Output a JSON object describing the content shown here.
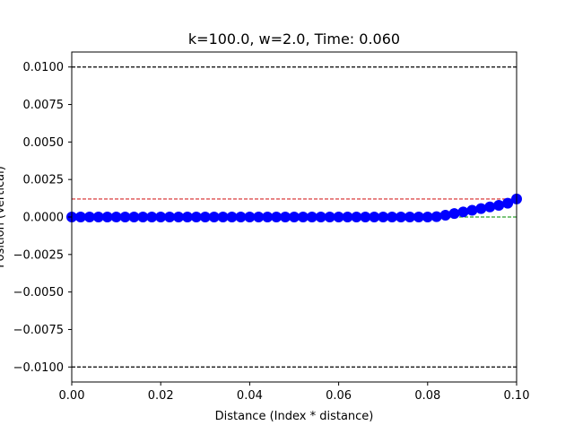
{
  "chart_data": {
    "type": "scatter",
    "title": "k=100.0, w=2.0, Time: 0.060",
    "xlabel": "Distance (Index * distance)",
    "ylabel": "Position (Vertical)",
    "xlim": [
      0.0,
      0.1
    ],
    "ylim": [
      -0.011,
      0.011
    ],
    "x_ticks": [
      0.0,
      0.02,
      0.04,
      0.06,
      0.08,
      0.1
    ],
    "x_tick_labels": [
      "0.00",
      "0.02",
      "0.04",
      "0.06",
      "0.08",
      "0.10"
    ],
    "y_ticks": [
      -0.01,
      -0.0075,
      -0.005,
      -0.0025,
      0.0,
      0.0025,
      0.005,
      0.0075,
      0.01
    ],
    "y_tick_labels": [
      "−0.0100",
      "−0.0075",
      "−0.0050",
      "−0.0025",
      "0.0000",
      "0.0025",
      "0.0050",
      "0.0075",
      "0.0100"
    ],
    "grid": false,
    "reference_lines": [
      {
        "y": 0.01,
        "color": "#000000",
        "style": "dashed"
      },
      {
        "y": -0.01,
        "color": "#000000",
        "style": "dashed"
      },
      {
        "y": 0.0012,
        "color": "#d62728",
        "style": "dashed"
      },
      {
        "y": 0.0,
        "color": "#2ca02c",
        "style": "dashed"
      }
    ],
    "series": [
      {
        "color": "#0000ff",
        "marker": "circle",
        "x": [
          0.0,
          0.002,
          0.004,
          0.006,
          0.008,
          0.01,
          0.012,
          0.014,
          0.016,
          0.018,
          0.02,
          0.022,
          0.024,
          0.026,
          0.028,
          0.03,
          0.032,
          0.034,
          0.036,
          0.038,
          0.04,
          0.042,
          0.044,
          0.046,
          0.048,
          0.05,
          0.052,
          0.054,
          0.056,
          0.058,
          0.06,
          0.062,
          0.064,
          0.066,
          0.068,
          0.07,
          0.072,
          0.074,
          0.076,
          0.078,
          0.08,
          0.082,
          0.084,
          0.086,
          0.088,
          0.09,
          0.092,
          0.094,
          0.096,
          0.098,
          0.1
        ],
        "y": [
          0,
          0,
          0,
          0,
          0,
          0,
          0,
          0,
          0,
          0,
          0,
          0,
          0,
          0,
          0,
          0,
          0,
          0,
          0,
          0,
          0,
          0,
          0,
          0,
          0,
          0,
          0,
          0,
          0,
          0,
          0,
          0,
          0,
          0,
          0,
          0,
          0,
          0,
          0,
          0,
          0.0,
          2e-05,
          0.00012,
          0.00023,
          0.00034,
          0.00045,
          0.00056,
          0.00067,
          0.00078,
          0.00092,
          0.0012
        ]
      }
    ]
  }
}
